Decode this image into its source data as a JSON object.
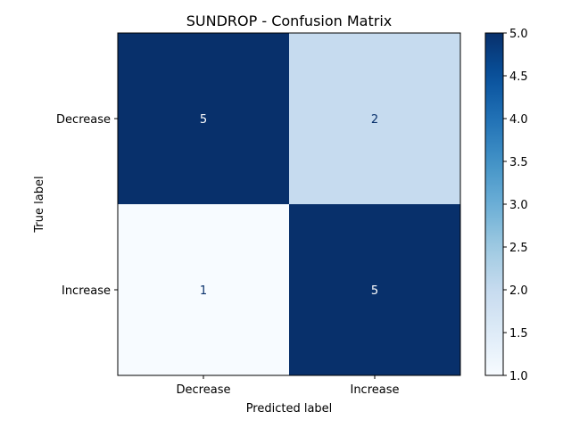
{
  "chart_data": {
    "type": "heatmap",
    "title": "SUNDROP - Confusion Matrix",
    "xlabel": "Predicted label",
    "ylabel": "True label",
    "x_categories": [
      "Decrease",
      "Increase"
    ],
    "y_categories": [
      "Decrease",
      "Increase"
    ],
    "values": [
      [
        5,
        2
      ],
      [
        1,
        5
      ]
    ],
    "colormap": "Blues",
    "vmin": 1,
    "vmax": 5,
    "colorbar_ticks": [
      "1.0",
      "1.5",
      "2.0",
      "2.5",
      "3.0",
      "3.5",
      "4.0",
      "4.5",
      "5.0"
    ],
    "low_color": "#f7fbff",
    "high_color": "#08306b",
    "text_on_dark": "#ffffff",
    "text_on_light": "#08306b"
  }
}
